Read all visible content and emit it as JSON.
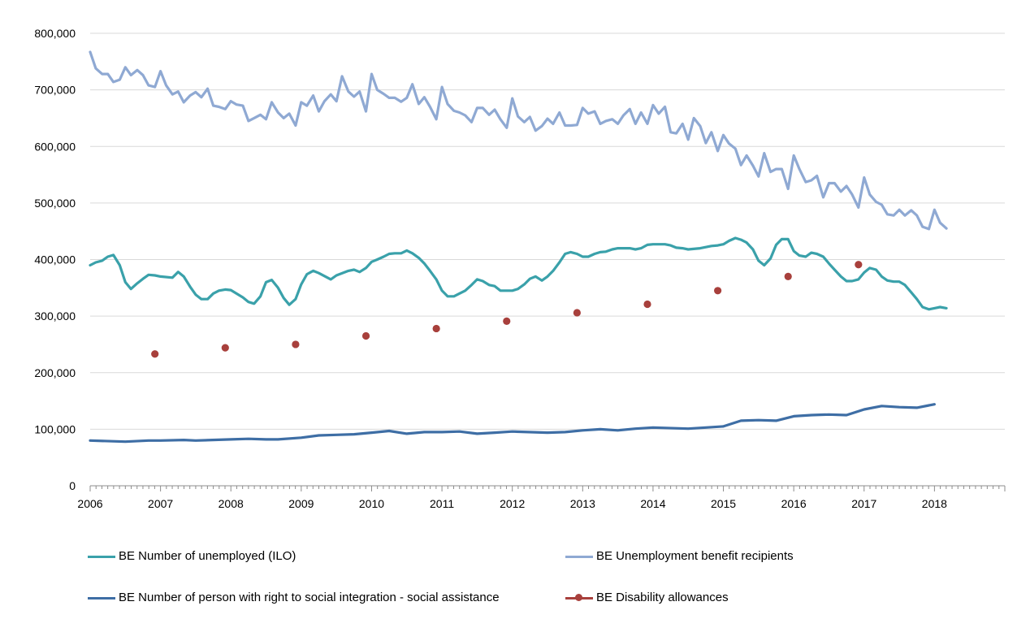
{
  "colors": {
    "unemployed": "#3aa1aa",
    "benefit": "#8fa9d3",
    "social": "#3e6ea5",
    "disability": "#a8403c",
    "grid": "#d9d9d9",
    "axis": "#8c8c8c"
  },
  "chart_data": {
    "type": "line",
    "title": "",
    "xlabel": "",
    "ylabel": "",
    "xlim": [
      2006,
      2019
    ],
    "ylim": [
      0,
      800000
    ],
    "grid": "horizontal",
    "legend_position": "bottom",
    "y_tick_values": [
      0,
      100000,
      200000,
      300000,
      400000,
      500000,
      600000,
      700000,
      800000
    ],
    "y_tick_labels": [
      "0",
      "100,000",
      "200,000",
      "300,000",
      "400,000",
      "500,000",
      "600,000",
      "700,000",
      "800,000"
    ],
    "x_tick_values": [
      2006,
      2007,
      2008,
      2009,
      2010,
      2011,
      2012,
      2013,
      2014,
      2015,
      2016,
      2017,
      2018
    ],
    "x_tick_labels": [
      "2006",
      "2007",
      "2008",
      "2009",
      "2010",
      "2011",
      "2012",
      "2013",
      "2014",
      "2015",
      "2016",
      "2017",
      "2018"
    ],
    "series": [
      {
        "name": "BE Number of unemployed (ILO)",
        "key": "unemployed",
        "kind": "line",
        "x": [
          2006.0,
          2006.08,
          2006.17,
          2006.25,
          2006.33,
          2006.42,
          2006.5,
          2006.58,
          2006.67,
          2006.75,
          2006.83,
          2006.92,
          2007.0,
          2007.17,
          2007.25,
          2007.33,
          2007.42,
          2007.5,
          2007.58,
          2007.67,
          2007.75,
          2007.83,
          2007.92,
          2008.0,
          2008.17,
          2008.25,
          2008.33,
          2008.42,
          2008.5,
          2008.58,
          2008.67,
          2008.75,
          2008.83,
          2008.92,
          2009.0,
          2009.08,
          2009.17,
          2009.25,
          2009.42,
          2009.5,
          2009.67,
          2009.75,
          2009.83,
          2009.92,
          2010.0,
          2010.08,
          2010.17,
          2010.25,
          2010.33,
          2010.42,
          2010.5,
          2010.58,
          2010.67,
          2010.75,
          2010.83,
          2010.92,
          2011.0,
          2011.08,
          2011.17,
          2011.25,
          2011.33,
          2011.42,
          2011.5,
          2011.58,
          2011.67,
          2011.75,
          2011.83,
          2011.92,
          2012.0,
          2012.08,
          2012.17,
          2012.25,
          2012.33,
          2012.42,
          2012.5,
          2012.58,
          2012.67,
          2012.75,
          2012.83,
          2012.92,
          2013.0,
          2013.08,
          2013.17,
          2013.25,
          2013.33,
          2013.42,
          2013.5,
          2013.58,
          2013.67,
          2013.75,
          2013.83,
          2013.92,
          2014.0,
          2014.17,
          2014.25,
          2014.33,
          2014.42,
          2014.5,
          2014.67,
          2014.83,
          2014.92,
          2015.0,
          2015.08,
          2015.17,
          2015.25,
          2015.33,
          2015.42,
          2015.5,
          2015.58,
          2015.67,
          2015.75,
          2015.83,
          2015.92,
          2016.0,
          2016.08,
          2016.17,
          2016.25,
          2016.33,
          2016.42,
          2016.5,
          2016.58,
          2016.67,
          2016.75,
          2016.83,
          2016.92,
          2017.0,
          2017.08,
          2017.17,
          2017.25,
          2017.33,
          2017.42,
          2017.5,
          2017.58,
          2017.67,
          2017.75,
          2017.83,
          2017.92,
          2018.0,
          2018.08,
          2018.17
        ],
        "values": [
          390000,
          395000,
          398000,
          405000,
          408000,
          390000,
          360000,
          348000,
          358000,
          366000,
          373000,
          372000,
          370000,
          368000,
          378000,
          370000,
          352000,
          338000,
          330000,
          330000,
          340000,
          345000,
          347000,
          346000,
          333000,
          325000,
          322000,
          335000,
          360000,
          364000,
          350000,
          332000,
          320000,
          330000,
          356000,
          374000,
          380000,
          376000,
          365000,
          372000,
          380000,
          382000,
          378000,
          385000,
          396000,
          400000,
          405000,
          410000,
          411000,
          411000,
          416000,
          411000,
          403000,
          393000,
          380000,
          365000,
          345000,
          335000,
          335000,
          340000,
          345000,
          355000,
          365000,
          362000,
          355000,
          353000,
          345000,
          345000,
          345000,
          348000,
          356000,
          366000,
          370000,
          363000,
          370000,
          380000,
          395000,
          410000,
          413000,
          410000,
          405000,
          405000,
          410000,
          413000,
          414000,
          418000,
          420000,
          420000,
          420000,
          418000,
          420000,
          426000,
          427000,
          427000,
          425000,
          421000,
          420000,
          418000,
          420000,
          424000,
          425000,
          427000,
          433000,
          438000,
          435000,
          430000,
          418000,
          398000,
          390000,
          402000,
          426000,
          436000,
          436000,
          415000,
          407000,
          405000,
          412000,
          410000,
          405000,
          393000,
          382000,
          370000,
          362000,
          362000,
          365000,
          377000,
          385000,
          382000,
          370000,
          363000,
          361000,
          361000,
          355000,
          342000,
          330000,
          316000,
          312000,
          314000,
          316000,
          314000
        ]
      },
      {
        "name": "BE Unemployment benefit recipients",
        "key": "benefit",
        "kind": "line",
        "x": [
          2006.0,
          2006.08,
          2006.17,
          2006.25,
          2006.33,
          2006.42,
          2006.5,
          2006.58,
          2006.67,
          2006.75,
          2006.83,
          2006.92,
          2007.0,
          2007.08,
          2007.17,
          2007.25,
          2007.33,
          2007.42,
          2007.5,
          2007.58,
          2007.67,
          2007.75,
          2007.83,
          2007.92,
          2008.0,
          2008.08,
          2008.17,
          2008.25,
          2008.33,
          2008.42,
          2008.5,
          2008.58,
          2008.67,
          2008.75,
          2008.83,
          2008.92,
          2009.0,
          2009.08,
          2009.17,
          2009.25,
          2009.33,
          2009.42,
          2009.5,
          2009.58,
          2009.67,
          2009.75,
          2009.83,
          2009.92,
          2010.0,
          2010.08,
          2010.17,
          2010.25,
          2010.33,
          2010.42,
          2010.5,
          2010.58,
          2010.67,
          2010.75,
          2010.83,
          2010.92,
          2011.0,
          2011.08,
          2011.17,
          2011.25,
          2011.33,
          2011.42,
          2011.5,
          2011.58,
          2011.67,
          2011.75,
          2011.83,
          2011.92,
          2012.0,
          2012.08,
          2012.17,
          2012.25,
          2012.33,
          2012.42,
          2012.5,
          2012.58,
          2012.67,
          2012.75,
          2012.83,
          2012.92,
          2013.0,
          2013.08,
          2013.17,
          2013.25,
          2013.33,
          2013.42,
          2013.5,
          2013.58,
          2013.67,
          2013.75,
          2013.83,
          2013.92,
          2014.0,
          2014.08,
          2014.17,
          2014.25,
          2014.33,
          2014.42,
          2014.5,
          2014.58,
          2014.67,
          2014.75,
          2014.83,
          2014.92,
          2015.0,
          2015.08,
          2015.17,
          2015.25,
          2015.33,
          2015.42,
          2015.5,
          2015.58,
          2015.67,
          2015.75,
          2015.83,
          2015.92,
          2016.0,
          2016.08,
          2016.17,
          2016.25,
          2016.33,
          2016.42,
          2016.5,
          2016.58,
          2016.67,
          2016.75,
          2016.83,
          2016.92,
          2017.0,
          2017.08,
          2017.17,
          2017.25,
          2017.33,
          2017.42,
          2017.5,
          2017.58,
          2017.67,
          2017.75,
          2017.83,
          2017.92,
          2018.0,
          2018.08,
          2018.17
        ],
        "values": [
          767000,
          738000,
          728000,
          728000,
          714000,
          718000,
          740000,
          726000,
          735000,
          726000,
          708000,
          705000,
          733000,
          708000,
          692000,
          697000,
          678000,
          690000,
          696000,
          687000,
          702000,
          672000,
          670000,
          666000,
          680000,
          674000,
          672000,
          645000,
          650000,
          656000,
          648000,
          678000,
          660000,
          650000,
          658000,
          637000,
          678000,
          672000,
          690000,
          662000,
          680000,
          692000,
          680000,
          724000,
          697000,
          688000,
          697000,
          662000,
          728000,
          700000,
          693000,
          686000,
          686000,
          679000,
          686000,
          710000,
          675000,
          687000,
          670000,
          648000,
          705000,
          675000,
          663000,
          660000,
          655000,
          643000,
          668000,
          668000,
          656000,
          665000,
          648000,
          633000,
          685000,
          653000,
          643000,
          652000,
          628000,
          636000,
          649000,
          640000,
          660000,
          637000,
          637000,
          638000,
          668000,
          658000,
          662000,
          640000,
          645000,
          648000,
          640000,
          655000,
          666000,
          640000,
          660000,
          640000,
          673000,
          658000,
          670000,
          625000,
          623000,
          640000,
          612000,
          650000,
          636000,
          606000,
          625000,
          592000,
          620000,
          605000,
          596000,
          567000,
          584000,
          566000,
          547000,
          588000,
          555000,
          560000,
          560000,
          525000,
          584000,
          560000,
          537000,
          540000,
          548000,
          510000,
          535000,
          535000,
          520000,
          530000,
          515000,
          492000,
          545000,
          515000,
          502000,
          497000,
          480000,
          478000,
          488000,
          478000,
          487000,
          478000,
          458000,
          454000,
          488000,
          465000,
          455000
        ]
      },
      {
        "name": "BE Number of person with right to social integration - social assistance",
        "key": "social",
        "kind": "line",
        "x": [
          2006.0,
          2006.5,
          2006.83,
          2007.0,
          2007.33,
          2007.5,
          2008.0,
          2008.25,
          2008.5,
          2008.67,
          2009.0,
          2009.25,
          2009.5,
          2009.75,
          2010.0,
          2010.25,
          2010.5,
          2010.75,
          2011.0,
          2011.25,
          2011.5,
          2011.75,
          2012.0,
          2012.5,
          2012.75,
          2013.0,
          2013.25,
          2013.5,
          2013.75,
          2014.0,
          2014.5,
          2014.75,
          2015.0,
          2015.25,
          2015.5,
          2015.75,
          2016.0,
          2016.25,
          2016.5,
          2016.75,
          2017.0,
          2017.25,
          2017.5,
          2017.75,
          2018.0
        ],
        "values": [
          80000,
          78000,
          80000,
          80000,
          81000,
          80000,
          82000,
          83000,
          82000,
          82000,
          85000,
          89000,
          90000,
          91000,
          94000,
          97000,
          92000,
          95000,
          95000,
          96000,
          92000,
          94000,
          96000,
          94000,
          95000,
          98000,
          100000,
          98000,
          101000,
          103000,
          101000,
          103000,
          105000,
          115000,
          116000,
          115000,
          123000,
          125000,
          126000,
          125000,
          135000,
          141000,
          139000,
          138000,
          144000
        ]
      },
      {
        "name": "BE Disability allowances",
        "key": "disability",
        "kind": "points",
        "x": [
          2006.92,
          2007.92,
          2008.92,
          2009.92,
          2010.92,
          2011.92,
          2012.92,
          2013.92,
          2014.92,
          2015.92,
          2016.92
        ],
        "values": [
          233000,
          244000,
          250000,
          265000,
          278000,
          291000,
          306000,
          321000,
          345000,
          370000,
          391000
        ]
      }
    ]
  }
}
